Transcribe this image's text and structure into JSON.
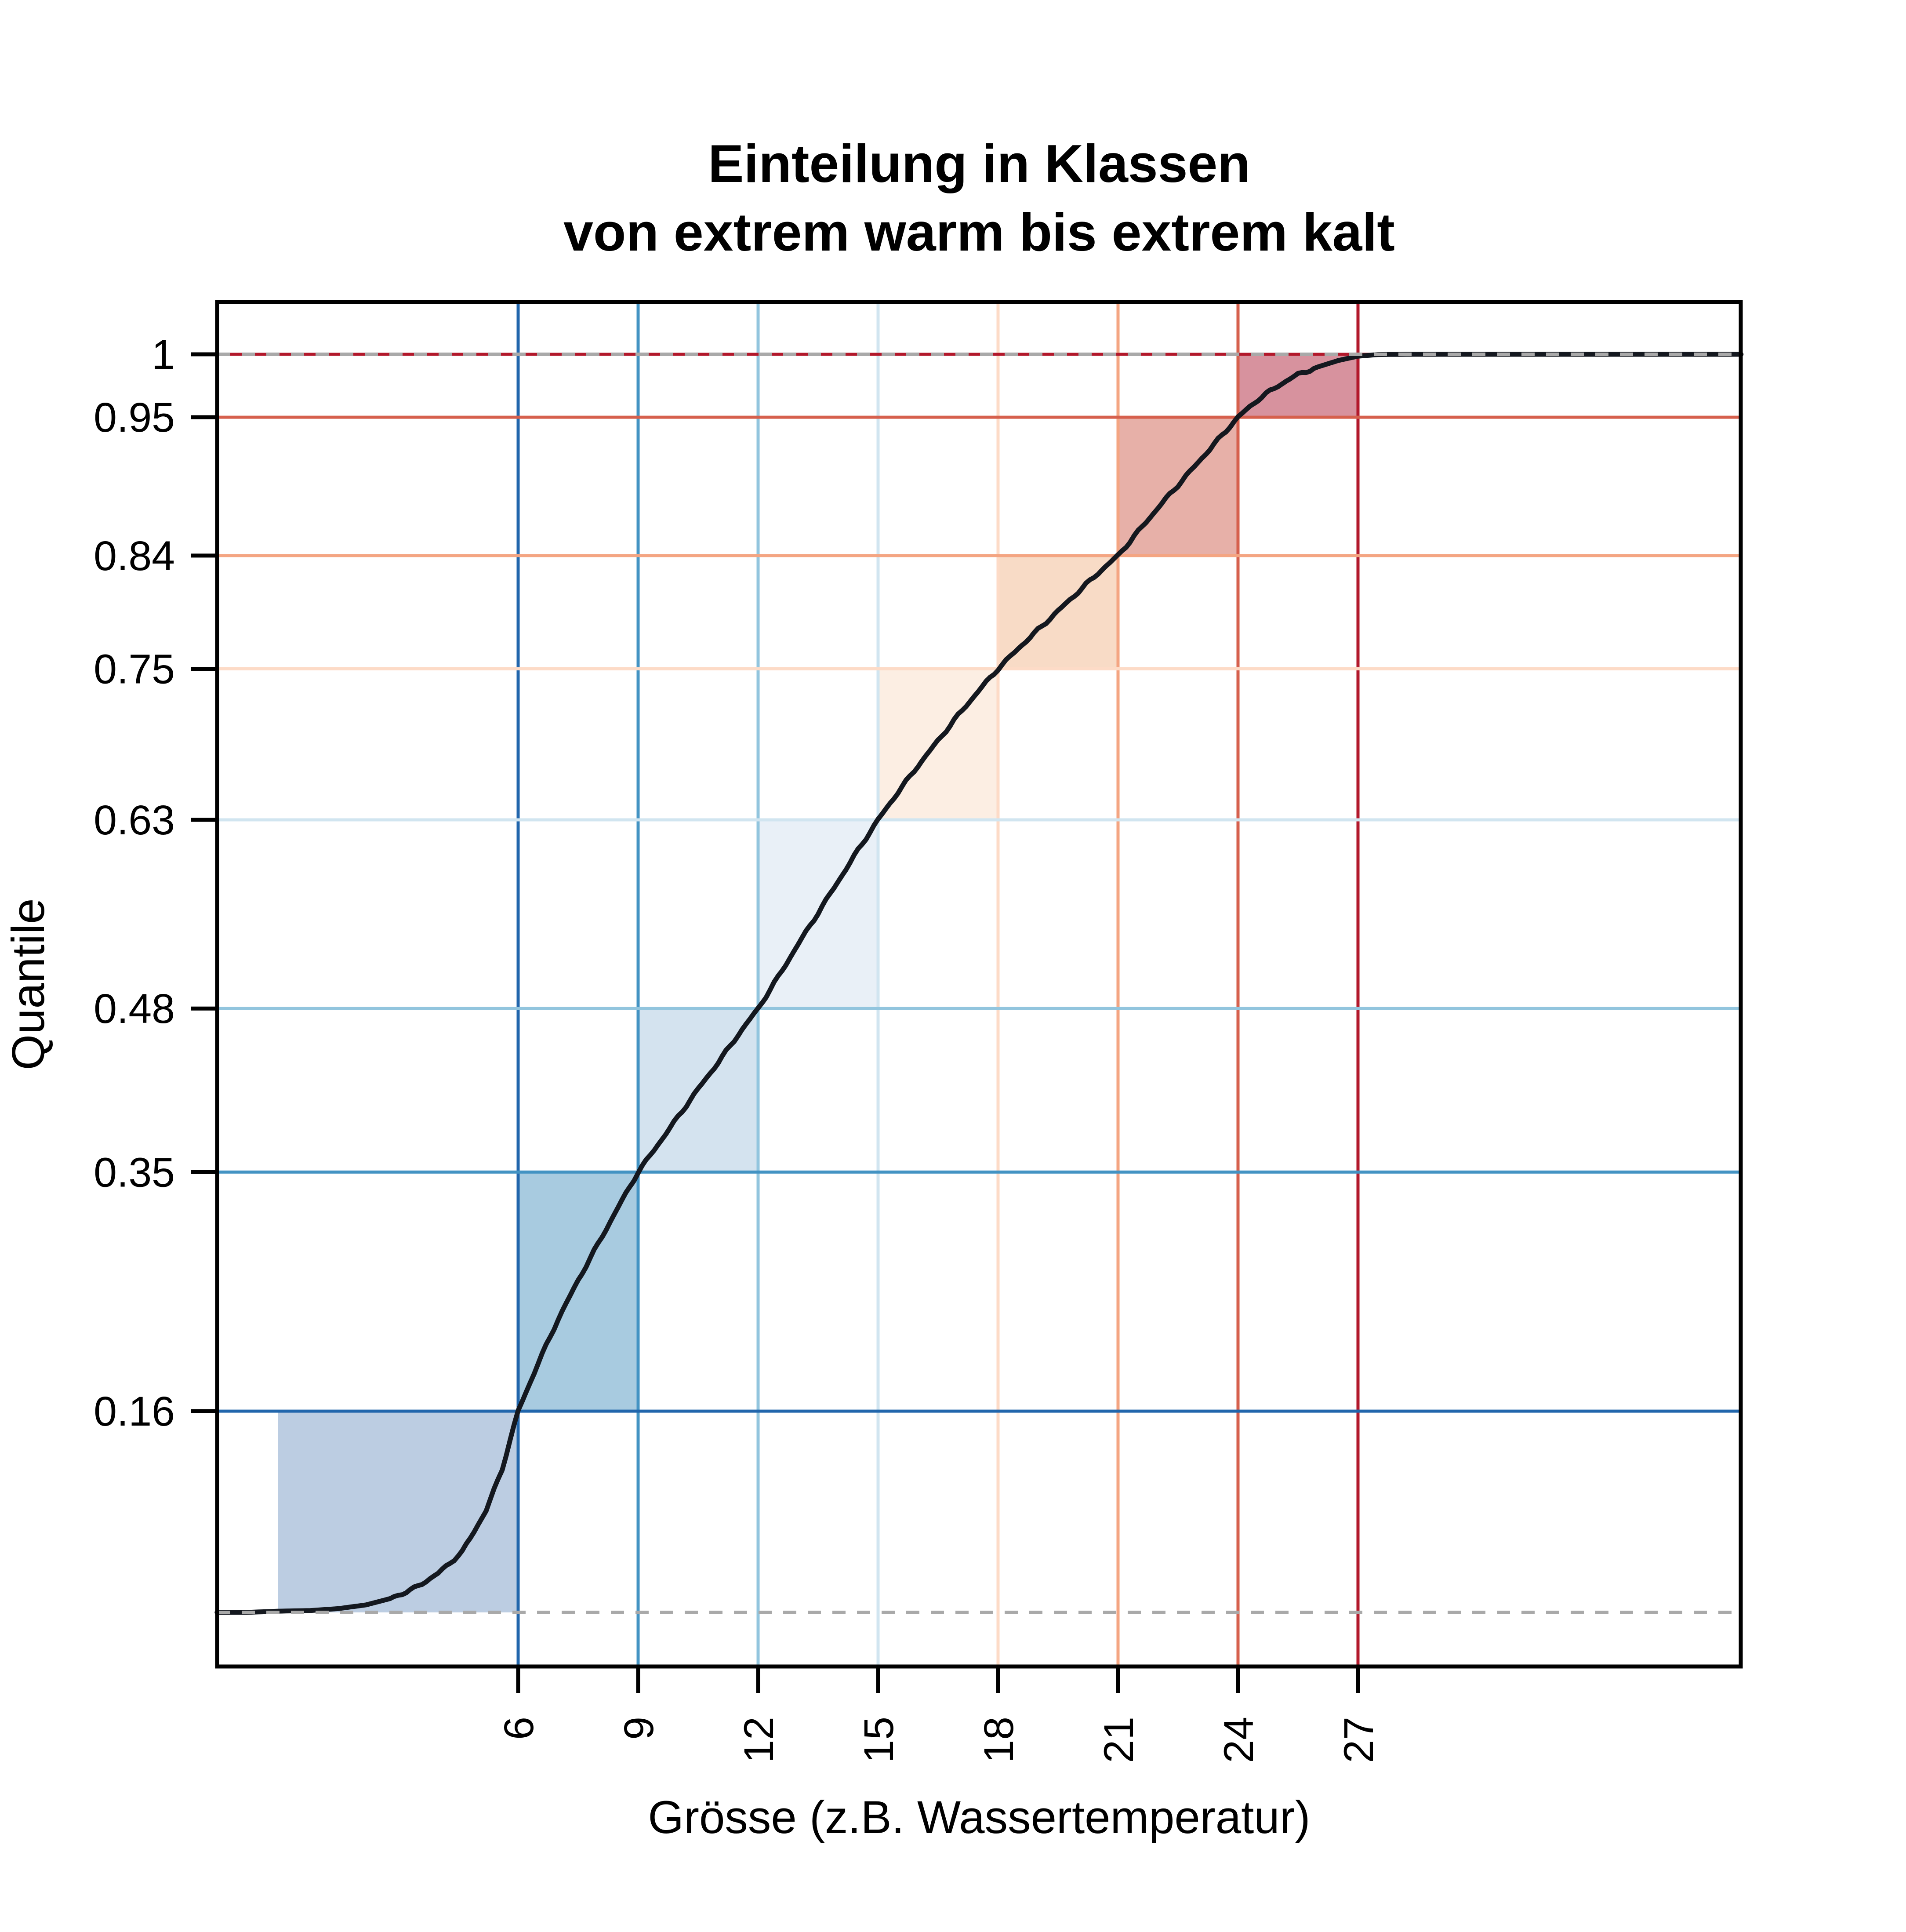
{
  "title": {
    "line1": "Einteilung in Klassen",
    "line2": "von extrem warm bis extrem kalt"
  },
  "chart_data": {
    "type": "line",
    "title": "Einteilung in Klassen von extrem warm bis extrem kalt",
    "xlabel": "Grösse (z.B. Wassertemperatur)",
    "ylabel": "Quantile",
    "xlim": [
      -1.53,
      36.58
    ],
    "ylim": [
      -0.04,
      1.04
    ],
    "grid": true,
    "legend": false,
    "background": "#FFFFFF",
    "frame_color": "#000000",
    "x_ticks": [
      {
        "value": 6,
        "label": "6",
        "color": "#2166AC"
      },
      {
        "value": 9,
        "label": "9",
        "color": "#4393C3"
      },
      {
        "value": 12,
        "label": "12",
        "color": "#92C5DE"
      },
      {
        "value": 15,
        "label": "15",
        "color": "#D1E5F0"
      },
      {
        "value": 18,
        "label": "18",
        "color": "#FDDBC7"
      },
      {
        "value": 21,
        "label": "21",
        "color": "#F4A582"
      },
      {
        "value": 24,
        "label": "24",
        "color": "#D6604D"
      },
      {
        "value": 27,
        "label": "27",
        "color": "#B2182B"
      }
    ],
    "y_ticks": [
      {
        "value": 1,
        "label": "1",
        "color": "#B2182B"
      },
      {
        "value": 0.95,
        "label": "0.95",
        "color": "#D6604D"
      },
      {
        "value": 0.84,
        "label": "0.84",
        "color": "#F4A582"
      },
      {
        "value": 0.75,
        "label": "0.75",
        "color": "#FDDBC7"
      },
      {
        "value": 0.63,
        "label": "0.63",
        "color": "#D1E5F0"
      },
      {
        "value": 0.48,
        "label": "0.48",
        "color": "#92C5DE"
      },
      {
        "value": 0.35,
        "label": "0.35",
        "color": "#4393C3"
      },
      {
        "value": 0.16,
        "label": "0.16",
        "color": "#2166AC"
      }
    ],
    "classes": [
      {
        "x0": 0,
        "x1": 6,
        "q0": 0,
        "q1": 0.16,
        "fill": "#BCCDE2"
      },
      {
        "x0": 6,
        "x1": 9,
        "q0": 0.16,
        "q1": 0.35,
        "fill": "#A8CBE0"
      },
      {
        "x0": 9,
        "x1": 12,
        "q0": 0.35,
        "q1": 0.48,
        "fill": "#D4E3EF"
      },
      {
        "x0": 12,
        "x1": 15,
        "q0": 0.48,
        "q1": 0.63,
        "fill": "#E9F0F7"
      },
      {
        "x0": 15,
        "x1": 18,
        "q0": 0.63,
        "q1": 0.75,
        "fill": "#FCEEE3"
      },
      {
        "x0": 18,
        "x1": 21,
        "q0": 0.75,
        "q1": 0.84,
        "fill": "#F8DBC6"
      },
      {
        "x0": 21,
        "x1": 24,
        "q0": 0.84,
        "q1": 0.95,
        "fill": "#E7B0A8"
      },
      {
        "x0": 24,
        "x1": 27,
        "q0": 0.95,
        "q1": 1,
        "fill": "#D7929E"
      }
    ],
    "asymptotes": {
      "values": [
        0,
        1
      ],
      "color": "#A9A9A9",
      "style": "dashed"
    },
    "curve": {
      "color": "#14181F",
      "points": [
        [
          -1.53,
          0
        ],
        [
          -0.8,
          0
        ],
        [
          0,
          0.001
        ],
        [
          0.8,
          0.0015
        ],
        [
          1.5,
          0.003
        ],
        [
          2.2,
          0.006
        ],
        [
          2.8,
          0.011
        ],
        [
          3.4,
          0.019
        ],
        [
          4,
          0.031
        ],
        [
          4.6,
          0.048
        ],
        [
          5.2,
          0.081
        ],
        [
          5.6,
          0.114
        ],
        [
          6,
          0.16
        ],
        [
          6.5,
          0.198
        ],
        [
          7,
          0.233
        ],
        [
          7.5,
          0.264
        ],
        [
          8,
          0.293
        ],
        [
          8.5,
          0.322
        ],
        [
          9,
          0.35
        ],
        [
          9.5,
          0.372
        ],
        [
          10,
          0.394
        ],
        [
          10.5,
          0.416
        ],
        [
          11,
          0.437
        ],
        [
          11.5,
          0.459
        ],
        [
          12,
          0.48
        ],
        [
          12.5,
          0.505
        ],
        [
          13,
          0.531
        ],
        [
          13.5,
          0.556
        ],
        [
          14,
          0.581
        ],
        [
          14.5,
          0.606
        ],
        [
          15,
          0.63
        ],
        [
          15.5,
          0.652
        ],
        [
          16,
          0.673
        ],
        [
          16.5,
          0.693
        ],
        [
          17,
          0.713
        ],
        [
          17.5,
          0.732
        ],
        [
          18,
          0.75
        ],
        [
          18.5,
          0.766
        ],
        [
          19,
          0.781
        ],
        [
          19.5,
          0.796
        ],
        [
          20,
          0.811
        ],
        [
          20.5,
          0.826
        ],
        [
          21,
          0.84
        ],
        [
          21.5,
          0.859
        ],
        [
          22,
          0.878
        ],
        [
          22.5,
          0.896
        ],
        [
          23,
          0.914
        ],
        [
          23.5,
          0.932
        ],
        [
          24,
          0.95
        ],
        [
          24.5,
          0.964
        ],
        [
          25,
          0.975
        ],
        [
          25.5,
          0.984
        ],
        [
          26,
          0.99
        ],
        [
          26.5,
          0.995
        ],
        [
          27,
          0.9985
        ],
        [
          27.5,
          0.9998
        ],
        [
          28.2,
          1
        ],
        [
          30,
          1
        ],
        [
          33,
          1
        ],
        [
          36.58,
          1
        ]
      ]
    }
  }
}
